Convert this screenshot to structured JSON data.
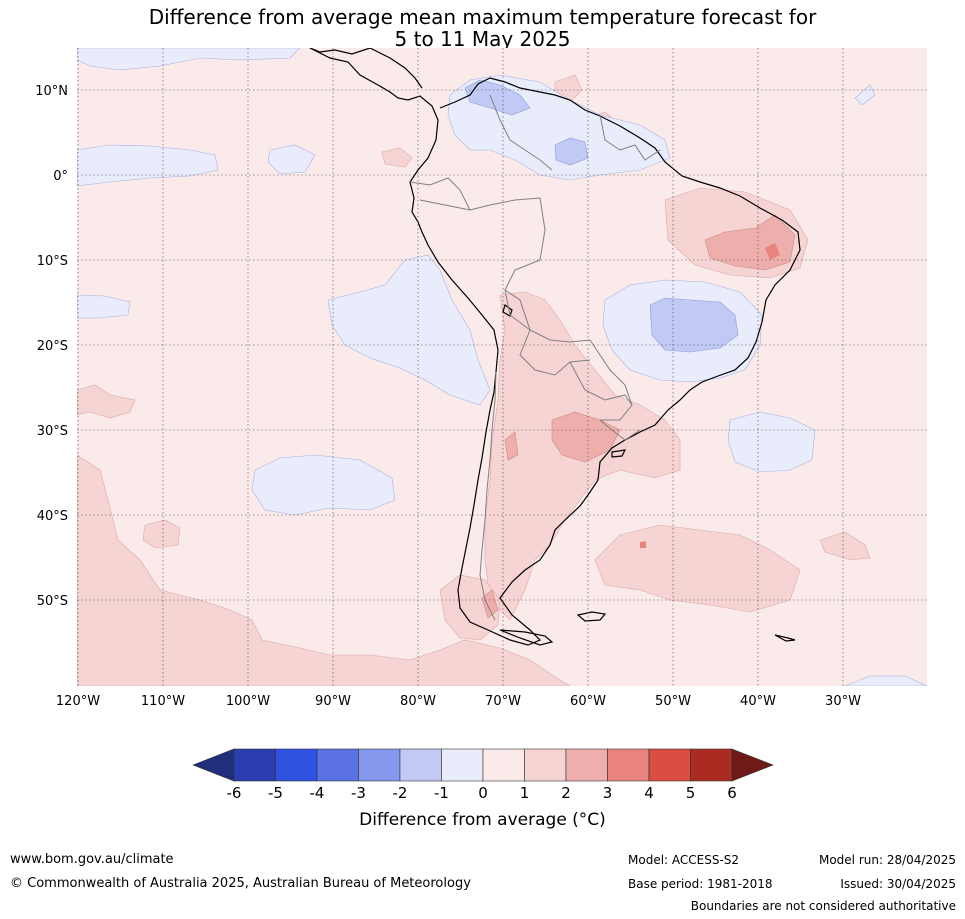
{
  "title_line1": "Difference from average mean maximum temperature forecast for",
  "title_line2": "5 to 11 May 2025",
  "map": {
    "latitude_labels": [
      "10°N",
      "0°",
      "10°S",
      "20°S",
      "30°S",
      "40°S",
      "50°S"
    ],
    "longitude_labels": [
      "120°W",
      "110°W",
      "100°W",
      "90°W",
      "80°W",
      "70°W",
      "60°W",
      "50°W",
      "40°W",
      "30°W"
    ],
    "gridlines": "dotted",
    "colors": {
      "land_outline": "#000000",
      "country_border": "#808080",
      "gridline": "#444444"
    }
  },
  "colorbar": {
    "tick_labels": [
      "-6",
      "-5",
      "-4",
      "-3",
      "-2",
      "-1",
      "0",
      "1",
      "2",
      "3",
      "4",
      "5",
      "6"
    ],
    "colors": [
      "#1f2f7c",
      "#2a3eb1",
      "#2f52e0",
      "#5a72e3",
      "#8598ed",
      "#c1c9f4",
      "#e9ecfb",
      "#fbeaea",
      "#f6d4d3",
      "#eeaeab",
      "#e8837e",
      "#da4d42",
      "#ab2b23",
      "#6e1a16"
    ],
    "title": "Difference from average (°C)"
  },
  "footer": {
    "website": "www.bom.gov.au/climate",
    "copyright": "© Commonwealth of Australia 2025, Australian Bureau of Meteorology",
    "model": "Model: ACCESS-S2",
    "base_period": "Base period: 1981-2018",
    "model_run": "Model run: 28/04/2025",
    "issued": "Issued: 30/04/2025",
    "disclaimer": "Boundaries are not considered authoritative"
  }
}
